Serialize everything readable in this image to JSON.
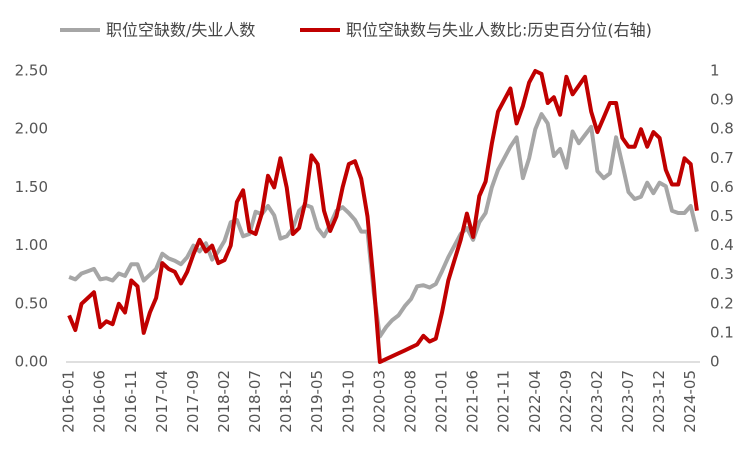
{
  "chart_data": {
    "type": "line",
    "categories": [
      "2016-01",
      null,
      null,
      null,
      null,
      "2016-06",
      null,
      null,
      null,
      null,
      "2016-11",
      null,
      null,
      null,
      null,
      "2017-04",
      null,
      null,
      null,
      null,
      "2017-09",
      null,
      null,
      null,
      null,
      "2018-02",
      null,
      null,
      null,
      null,
      "2018-07",
      null,
      null,
      null,
      null,
      "2018-12",
      null,
      null,
      null,
      null,
      "2019-05",
      null,
      null,
      null,
      null,
      "2019-10",
      null,
      null,
      null,
      null,
      "2020-03",
      null,
      null,
      null,
      null,
      "2020-08",
      null,
      null,
      null,
      null,
      "2021-01",
      null,
      null,
      null,
      null,
      "2021-06",
      null,
      null,
      null,
      null,
      "2021-11",
      null,
      null,
      null,
      null,
      "2022-04",
      null,
      null,
      null,
      null,
      "2022-09",
      null,
      null,
      null,
      null,
      "2023-02",
      null,
      null,
      null,
      null,
      "2023-07",
      null,
      null,
      null,
      null,
      "2023-12",
      null,
      null,
      null,
      null,
      "2024-05",
      null
    ],
    "series": [
      {
        "name": "职位空缺数/失业人数",
        "color": "#a6a6a6",
        "values": [
          0.73,
          0.71,
          0.76,
          0.78,
          0.8,
          0.71,
          0.72,
          0.7,
          0.76,
          0.74,
          0.84,
          0.84,
          0.7,
          0.75,
          0.8,
          0.93,
          0.89,
          0.87,
          0.84,
          0.9,
          1.0,
          0.95,
          1.02,
          0.88,
          0.95,
          1.04,
          1.2,
          1.22,
          1.08,
          1.1,
          1.29,
          1.27,
          1.34,
          1.26,
          1.06,
          1.08,
          1.15,
          1.3,
          1.35,
          1.33,
          1.15,
          1.08,
          1.18,
          1.3,
          1.33,
          1.28,
          1.22,
          1.12,
          1.12,
          0.6,
          0.22,
          0.3,
          0.36,
          0.4,
          0.48,
          0.54,
          0.65,
          0.66,
          0.64,
          0.67,
          0.78,
          0.9,
          1.0,
          1.1,
          1.15,
          1.05,
          1.2,
          1.28,
          1.5,
          1.65,
          1.75,
          1.85,
          1.93,
          1.58,
          1.75,
          2.0,
          2.13,
          2.05,
          1.77,
          1.83,
          1.67,
          1.98,
          1.88,
          1.95,
          2.02,
          1.64,
          1.58,
          1.62,
          1.93,
          1.7,
          1.46,
          1.4,
          1.42,
          1.54,
          1.45,
          1.54,
          1.51,
          1.3,
          1.28,
          1.28,
          1.34,
          1.12
        ]
      },
      {
        "name": "职位空缺数与失业人数比:历史百分位(右轴)",
        "color": "#c00000",
        "axis": "y2",
        "values": [
          0.16,
          0.11,
          0.2,
          0.22,
          0.24,
          0.12,
          0.14,
          0.13,
          0.2,
          0.17,
          0.28,
          0.26,
          0.1,
          0.17,
          0.22,
          0.34,
          0.32,
          0.31,
          0.27,
          0.31,
          0.37,
          0.42,
          0.38,
          0.4,
          0.34,
          0.35,
          0.4,
          0.55,
          0.59,
          0.45,
          0.44,
          0.51,
          0.64,
          0.6,
          0.7,
          0.6,
          0.44,
          0.46,
          0.55,
          0.71,
          0.68,
          0.52,
          0.45,
          0.5,
          0.6,
          0.68,
          0.69,
          0.63,
          0.5,
          0.27,
          0.0,
          0.01,
          0.02,
          0.03,
          0.04,
          0.05,
          0.06,
          0.09,
          0.07,
          0.08,
          0.17,
          0.28,
          0.35,
          0.42,
          0.51,
          0.43,
          0.57,
          0.62,
          0.75,
          0.86,
          0.9,
          0.94,
          0.82,
          0.88,
          0.96,
          1.0,
          0.99,
          0.89,
          0.91,
          0.85,
          0.98,
          0.92,
          0.95,
          0.98,
          0.86,
          0.79,
          0.84,
          0.89,
          0.89,
          0.77,
          0.74,
          0.74,
          0.8,
          0.74,
          0.79,
          0.77,
          0.66,
          0.61,
          0.61,
          0.7,
          0.68,
          0.52
        ]
      }
    ],
    "ylim": [
      0,
      2.5
    ],
    "yticks": [
      {
        "value": 0,
        "label": "0.00"
      },
      {
        "value": 0.5,
        "label": "0.50"
      },
      {
        "value": 1,
        "label": "1.00"
      },
      {
        "value": 1.5,
        "label": "1.50"
      },
      {
        "value": 2,
        "label": "2.00"
      },
      {
        "value": 2.5,
        "label": "2.50"
      }
    ],
    "y2lim": [
      0,
      1
    ],
    "y2ticks": [
      0,
      0.1,
      0.2,
      0.3,
      0.4,
      0.5,
      0.6,
      0.7,
      0.8,
      0.9,
      1
    ],
    "grid": false
  }
}
